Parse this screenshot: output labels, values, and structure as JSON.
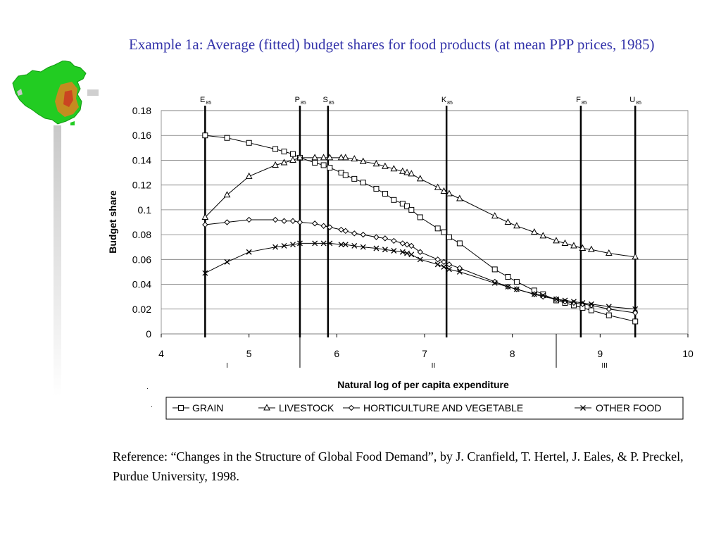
{
  "slide": {
    "title": "Example 1a: Average (fitted) budget shares for food products (at mean PPP prices, 1985)",
    "reference": "Reference: “Changes in the Structure of Global Food Demand”, by J. Cranfield, T. Hertel, J. Eales, & P. Preckel, Purdue University, 1998."
  },
  "logo": {
    "icon": "china-map-icon",
    "colors": {
      "land": "#22cc22",
      "hot": "#e08020",
      "bar": "#cfcfcf"
    }
  },
  "chart_data": {
    "type": "line",
    "xlabel": "Natural log of per capita expenditure",
    "ylabel": "Budget share",
    "xlim": [
      4,
      10
    ],
    "ylim": [
      0,
      0.18
    ],
    "x_ticks": [
      "4",
      "5",
      "6",
      "7",
      "8",
      "9",
      "10"
    ],
    "y_ticks": [
      "0",
      "0.02",
      "0.04",
      "0.06",
      "0.08",
      "0.1",
      "0.12",
      "0.14",
      "0.16",
      "0.18"
    ],
    "grid": "horizontal",
    "legend_position": "bottom",
    "vertical_markers": [
      {
        "label": "E",
        "sub": "85",
        "x": 4.5
      },
      {
        "label": "P",
        "sub": "85",
        "x": 5.58
      },
      {
        "label": "S",
        "sub": "85",
        "x": 5.9
      },
      {
        "label": "K",
        "sub": "85",
        "x": 7.25
      },
      {
        "label": "F",
        "sub": "85",
        "x": 8.78
      },
      {
        "label": "U",
        "sub": "85",
        "x": 9.4
      }
    ],
    "region_labels": [
      {
        "label": "I",
        "x": 4.75
      },
      {
        "label": "II",
        "x": 7.1
      },
      {
        "label": "III",
        "x": 9.05
      }
    ],
    "region_separators": [
      5.58,
      8.5
    ],
    "series": [
      {
        "name": "GRAIN",
        "marker": "square",
        "x": [
          4.5,
          4.75,
          5.0,
          5.3,
          5.4,
          5.5,
          5.58,
          5.75,
          5.85,
          5.92,
          6.05,
          6.1,
          6.2,
          6.3,
          6.45,
          6.55,
          6.65,
          6.75,
          6.8,
          6.85,
          6.95,
          7.15,
          7.22,
          7.28,
          7.4,
          7.8,
          7.95,
          8.05,
          8.25,
          8.35,
          8.5,
          8.6,
          8.7,
          8.8,
          8.9,
          9.1,
          9.4
        ],
        "y": [
          0.16,
          0.158,
          0.154,
          0.149,
          0.147,
          0.145,
          0.142,
          0.138,
          0.136,
          0.134,
          0.13,
          0.128,
          0.125,
          0.122,
          0.117,
          0.113,
          0.108,
          0.105,
          0.103,
          0.1,
          0.094,
          0.085,
          0.082,
          0.078,
          0.073,
          0.052,
          0.046,
          0.042,
          0.035,
          0.032,
          0.027,
          0.025,
          0.023,
          0.021,
          0.019,
          0.015,
          0.01
        ]
      },
      {
        "name": "LIVESTOCK",
        "marker": "triangle",
        "x": [
          4.5,
          4.75,
          5.0,
          5.3,
          5.4,
          5.5,
          5.58,
          5.75,
          5.85,
          5.92,
          6.05,
          6.1,
          6.2,
          6.3,
          6.45,
          6.55,
          6.65,
          6.75,
          6.8,
          6.85,
          6.95,
          7.15,
          7.22,
          7.28,
          7.4,
          7.8,
          7.95,
          8.05,
          8.25,
          8.35,
          8.5,
          8.6,
          8.7,
          8.8,
          8.9,
          9.1,
          9.4
        ],
        "y": [
          0.094,
          0.112,
          0.127,
          0.136,
          0.138,
          0.14,
          0.142,
          0.142,
          0.142,
          0.142,
          0.142,
          0.142,
          0.141,
          0.139,
          0.137,
          0.135,
          0.133,
          0.131,
          0.13,
          0.129,
          0.125,
          0.118,
          0.115,
          0.113,
          0.109,
          0.095,
          0.09,
          0.087,
          0.082,
          0.079,
          0.075,
          0.073,
          0.071,
          0.069,
          0.068,
          0.065,
          0.062
        ]
      },
      {
        "name": "HORTICULTURE AND VEGETABLE",
        "marker": "diamond",
        "x": [
          4.5,
          4.75,
          5.0,
          5.3,
          5.4,
          5.5,
          5.58,
          5.75,
          5.85,
          5.92,
          6.05,
          6.1,
          6.2,
          6.3,
          6.45,
          6.55,
          6.65,
          6.75,
          6.8,
          6.85,
          6.95,
          7.15,
          7.22,
          7.28,
          7.4,
          7.8,
          7.95,
          8.05,
          8.25,
          8.35,
          8.5,
          8.6,
          8.7,
          8.8,
          8.9,
          9.1,
          9.4
        ],
        "y": [
          0.088,
          0.09,
          0.092,
          0.092,
          0.091,
          0.091,
          0.09,
          0.089,
          0.087,
          0.086,
          0.084,
          0.083,
          0.081,
          0.08,
          0.078,
          0.077,
          0.075,
          0.073,
          0.072,
          0.071,
          0.066,
          0.06,
          0.058,
          0.056,
          0.053,
          0.042,
          0.038,
          0.036,
          0.032,
          0.03,
          0.028,
          0.026,
          0.025,
          0.024,
          0.023,
          0.02,
          0.017
        ]
      },
      {
        "name": "OTHER FOOD",
        "marker": "x",
        "x": [
          4.5,
          4.75,
          5.0,
          5.3,
          5.4,
          5.5,
          5.58,
          5.75,
          5.85,
          5.92,
          6.05,
          6.1,
          6.2,
          6.3,
          6.45,
          6.55,
          6.65,
          6.75,
          6.8,
          6.85,
          6.95,
          7.15,
          7.22,
          7.28,
          7.4,
          7.8,
          7.95,
          8.05,
          8.25,
          8.35,
          8.5,
          8.6,
          8.7,
          8.8,
          8.9,
          9.1,
          9.4
        ],
        "y": [
          0.049,
          0.058,
          0.066,
          0.07,
          0.071,
          0.072,
          0.073,
          0.073,
          0.073,
          0.073,
          0.072,
          0.072,
          0.071,
          0.07,
          0.069,
          0.068,
          0.067,
          0.066,
          0.065,
          0.064,
          0.06,
          0.056,
          0.054,
          0.052,
          0.05,
          0.041,
          0.038,
          0.036,
          0.032,
          0.031,
          0.028,
          0.027,
          0.026,
          0.025,
          0.024,
          0.022,
          0.02
        ]
      }
    ]
  }
}
